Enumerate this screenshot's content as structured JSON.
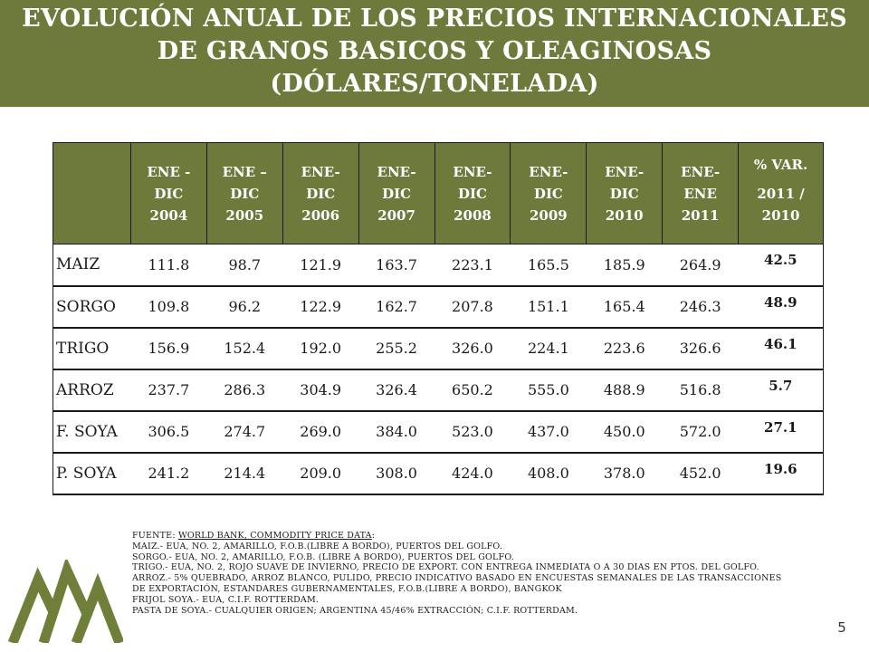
{
  "title": {
    "line1": "EVOLUCIÓN ANUAL DE LOS PRECIOS INTERNACIONALES",
    "line2": "DE GRANOS BASICOS Y OLEAGINOSAS",
    "line3": "(DÓLARES/TONELADA)"
  },
  "table": {
    "headers": [
      [
        "ENE -",
        "DIC",
        "2004"
      ],
      [
        "ENE –",
        "DIC",
        "2005"
      ],
      [
        "ENE-",
        "DIC",
        "2006"
      ],
      [
        "ENE-",
        "DIC",
        "2007"
      ],
      [
        "ENE-",
        "DIC",
        "2008"
      ],
      [
        "ENE-",
        "DIC",
        "2009"
      ],
      [
        "ENE-",
        "DIC",
        "2010"
      ],
      [
        "ENE-",
        "ENE",
        "2011"
      ]
    ],
    "var_header": [
      "% VAR.",
      "2011 /",
      "2010"
    ],
    "rows": [
      {
        "label": "MAIZ",
        "values": [
          "111.8",
          "98.7",
          "121.9",
          "163.7",
          "223.1",
          "165.5",
          "185.9",
          "264.9"
        ],
        "var": "42.5"
      },
      {
        "label": "SORGO",
        "values": [
          "109.8",
          "96.2",
          "122.9",
          "162.7",
          "207.8",
          "151.1",
          "165.4",
          "246.3"
        ],
        "var": "48.9"
      },
      {
        "label": "TRIGO",
        "values": [
          "156.9",
          "152.4",
          "192.0",
          "255.2",
          "326.0",
          "224.1",
          "223.6",
          "326.6"
        ],
        "var": "46.1"
      },
      {
        "label": "ARROZ",
        "values": [
          "237.7",
          "286.3",
          "304.9",
          "326.4",
          "650.2",
          "555.0",
          "488.9",
          "516.8"
        ],
        "var": "5.7"
      },
      {
        "label": "F. SOYA",
        "values": [
          "306.5",
          "274.7",
          "269.0",
          "384.0",
          "523.0",
          "437.0",
          "450.0",
          "572.0"
        ],
        "var": "27.1"
      },
      {
        "label": "P. SOYA",
        "values": [
          "241.2",
          "214.4",
          "209.0",
          "308.0",
          "424.0",
          "408.0",
          "378.0",
          "452.0"
        ],
        "var": "19.6"
      }
    ]
  },
  "notes": {
    "source_prefix": "FUENTE: ",
    "source_link": "WORLD BANK, COMMODITY PRICE DATA",
    "source_suffix": ":",
    "lines": [
      "MAIZ.-    EUA, NO. 2, AMARILLO, F.O.B.(LIBRE A BORDO), PUERTOS DEL GOLFO.",
      "SORGO.- EUA, NO. 2, AMARILLO, F.O.B. (LIBRE A BORDO), PUERTOS DEL GOLFO.",
      "TRIGO.-  EUA, NO. 2, ROJO SUAVE DE INVIERNO,  PRECIO DE EXPORT. CON ENTREGA INMEDIATA O A 30 DIAS EN PTOS. DEL GOLFO.",
      "ARROZ.- 5% QUEBRADO, ARROZ BLANCO, PULIDO, PRECIO INDICATIVO BASADO EN  ENCUESTAS SEMANALES DE LAS TRANSACCIONES",
      "DE EXPORTACIÓN, ESTANDARES GUBERNAMENTALES, F.O.B.(LIBRE A BORDO),  BANGKOK",
      "FRIJOL SOYA.-  EUA, C.I.F. ROTTERDAM.",
      "PASTA DE SOYA.- CUALQUIER ORIGEN; ARGENTINA 45/46% EXTRACCIÓN; C.I.F. ROTTERDAM."
    ]
  },
  "page_number": "5",
  "colors": {
    "header_green": "#6d7a3c",
    "logo_green": "#6f7f3a"
  },
  "logo_icon": "mountain-peaks-logo"
}
